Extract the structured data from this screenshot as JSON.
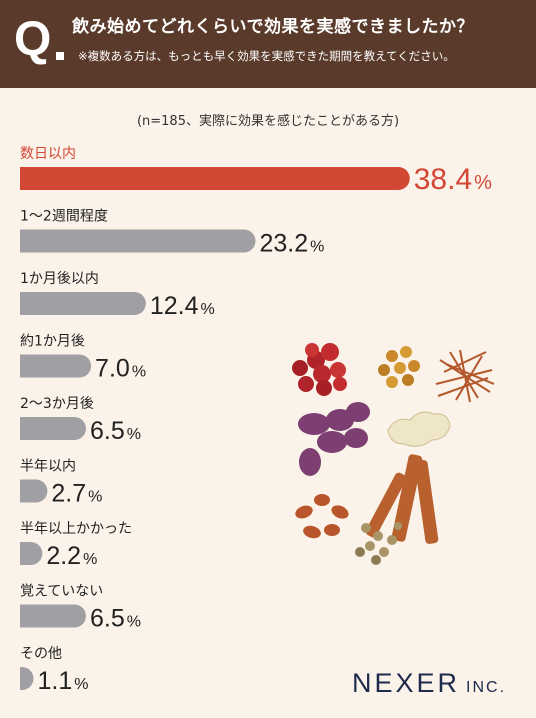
{
  "header": {
    "q_mark": "Q",
    "title": "飲み始めてどれくらいで効果を実感できましたか？",
    "note": "※複数ある方は、もっとも早く効果を実感できた期間を教えてください。"
  },
  "sample_note": "(n=185、実際に効果を感じたことがある方)",
  "logo": {
    "name": "NEXER",
    "suffix": "INC."
  },
  "colors": {
    "background": "#fbf2e9",
    "header": "#5a3b2b",
    "highlight": "#d34735",
    "bar": "#a0a0a4",
    "text": "#222222",
    "logo": "#1e2b4c"
  },
  "chart_data": {
    "type": "bar",
    "orientation": "horizontal",
    "categories": [
      "数日以内",
      "1〜2週間程度",
      "1か月後以内",
      "約1か月後",
      "2〜3か月後",
      "半年以内",
      "半年以上かかった",
      "覚えていない",
      "その他"
    ],
    "values": [
      38.4,
      23.2,
      12.4,
      7.0,
      6.5,
      2.7,
      2.2,
      6.5,
      1.1
    ],
    "value_labels": [
      "38.4",
      "23.2",
      "12.4",
      "7.0",
      "6.5",
      "2.7",
      "2.2",
      "6.5",
      "1.1"
    ],
    "unit": "%",
    "highlight_index": 0
  }
}
